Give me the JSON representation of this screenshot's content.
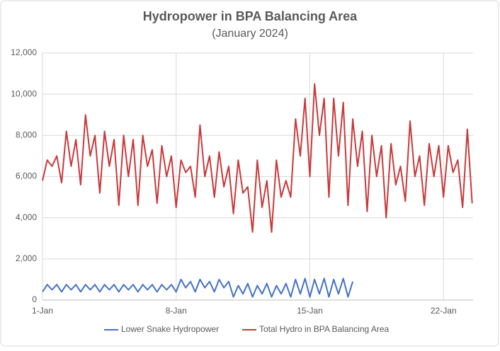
{
  "chart_data": {
    "type": "line",
    "title": "Hydropower in BPA Balancing Area",
    "subtitle": "(January 2024)",
    "x": [
      1,
      1.25,
      1.5,
      1.75,
      2,
      2.25,
      2.5,
      2.75,
      3,
      3.25,
      3.5,
      3.75,
      4,
      4.25,
      4.5,
      4.75,
      5,
      5.25,
      5.5,
      5.75,
      6,
      6.25,
      6.5,
      6.75,
      7,
      7.25,
      7.5,
      7.75,
      8,
      8.25,
      8.5,
      8.75,
      9,
      9.25,
      9.5,
      9.75,
      10,
      10.25,
      10.5,
      10.75,
      11,
      11.25,
      11.5,
      11.75,
      12,
      12.25,
      12.5,
      12.75,
      13,
      13.25,
      13.5,
      13.75,
      14,
      14.25,
      14.5,
      14.75,
      15,
      15.25,
      15.5,
      15.75,
      16,
      16.25,
      16.5,
      16.75,
      17,
      17.25,
      17.5,
      17.75,
      18,
      18.25,
      18.5,
      18.75,
      19,
      19.25,
      19.5,
      19.75,
      20,
      20.25,
      20.5,
      20.75,
      21,
      21.25,
      21.5,
      21.75,
      22,
      22.25,
      22.5,
      22.75,
      23,
      23.25,
      23.5
    ],
    "xlim": [
      1,
      23.55
    ],
    "xticks": [
      {
        "value": 1,
        "label": "1-Jan"
      },
      {
        "value": 8,
        "label": "8-Jan"
      },
      {
        "value": 15,
        "label": "15-Jan"
      },
      {
        "value": 22,
        "label": "22-Jan"
      }
    ],
    "ylim": [
      0,
      12000
    ],
    "yticks": [
      0,
      {
        "value": 2000,
        "label": "2,000"
      },
      {
        "value": 4000,
        "label": "4,000"
      },
      {
        "value": 6000,
        "label": "6,000"
      },
      {
        "value": 8000,
        "label": "8,000"
      },
      {
        "value": 10000,
        "label": "10,000"
      },
      {
        "value": 12000,
        "label": "12,000"
      }
    ],
    "grid": true,
    "legend": "bottom",
    "series": [
      {
        "name": "Lower Snake Hydropower",
        "color": "#4472c4",
        "values": [
          400,
          750,
          500,
          750,
          400,
          750,
          500,
          750,
          400,
          750,
          500,
          750,
          400,
          750,
          500,
          750,
          400,
          750,
          500,
          750,
          400,
          750,
          500,
          750,
          400,
          750,
          500,
          750,
          400,
          1000,
          600,
          900,
          400,
          1000,
          600,
          900,
          400,
          1000,
          600,
          900,
          150,
          700,
          300,
          800,
          150,
          700,
          300,
          800,
          150,
          700,
          300,
          800,
          150,
          1000,
          300,
          1050,
          150,
          1000,
          300,
          1050,
          150,
          1000,
          300,
          1050,
          150,
          900,
          null,
          null,
          null,
          null,
          null,
          null,
          null,
          null,
          null,
          null,
          null,
          null,
          null,
          null,
          null,
          null,
          null,
          null,
          null,
          null,
          null,
          null,
          null,
          null,
          null
        ]
      },
      {
        "name": "Total Hydro in BPA Balancing Area",
        "color": "#c9393b",
        "values": [
          5800,
          6800,
          6500,
          7000,
          5700,
          8200,
          6500,
          7800,
          5600,
          9000,
          7000,
          8000,
          5200,
          8200,
          6500,
          7800,
          4600,
          8000,
          6000,
          7800,
          4600,
          8000,
          6500,
          7300,
          4700,
          7500,
          6000,
          7000,
          4500,
          6800,
          6200,
          6500,
          5000,
          8500,
          6000,
          7000,
          5000,
          7200,
          5500,
          6500,
          4200,
          6800,
          5200,
          5500,
          3300,
          6800,
          4500,
          5800,
          3300,
          6800,
          5000,
          5800,
          5000,
          8800,
          7000,
          9800,
          6000,
          10500,
          8000,
          9800,
          5000,
          9800,
          7000,
          9600,
          4600,
          8800,
          6500,
          8200,
          4300,
          8000,
          6000,
          7500,
          4000,
          7600,
          5600,
          6500,
          4800,
          8700,
          6000,
          7000,
          4600,
          7600,
          6000,
          7500,
          5000,
          7500,
          6200,
          6800,
          4500,
          8300,
          4700
        ]
      }
    ]
  }
}
